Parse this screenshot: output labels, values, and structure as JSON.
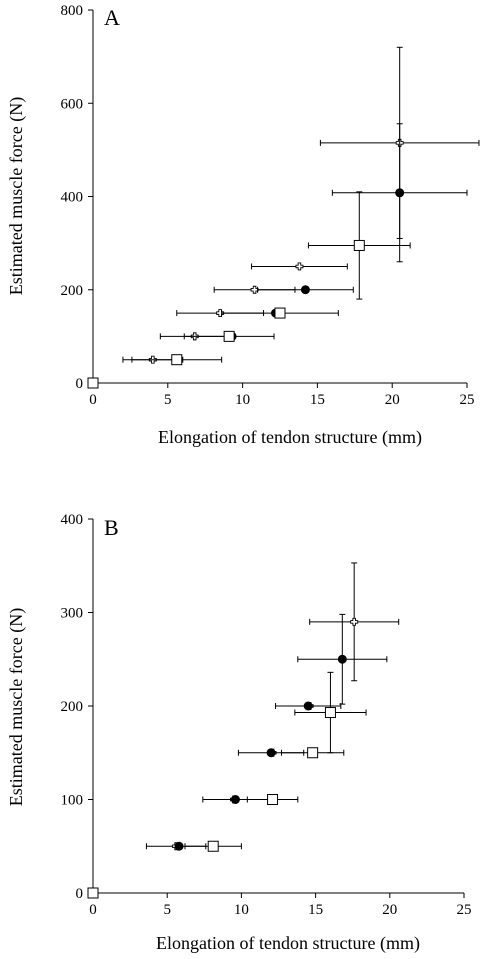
{
  "chart_data": [
    {
      "type": "scatter",
      "panel_label": "A",
      "xlabel": "Elongation of tendon structure (mm)",
      "ylabel": "Estimated muscle force (N)",
      "xlim": [
        0,
        25
      ],
      "ylim": [
        0,
        800
      ],
      "xticks": [
        0,
        5,
        10,
        15,
        20,
        25
      ],
      "yticks": [
        0,
        200,
        400,
        600,
        800
      ],
      "grid": false,
      "legend": "none",
      "series": [
        {
          "marker": "open-cross",
          "points": [
            {
              "x": 0,
              "y": 0,
              "xerr": 0,
              "yerr": 0
            },
            {
              "x": 4.0,
              "y": 50,
              "xerr": 2.0,
              "yerr": 0
            },
            {
              "x": 6.8,
              "y": 100,
              "xerr": 2.3,
              "yerr": 0
            },
            {
              "x": 8.5,
              "y": 150,
              "xerr": 2.9,
              "yerr": 0
            },
            {
              "x": 10.8,
              "y": 200,
              "xerr": 2.7,
              "yerr": 0
            },
            {
              "x": 13.8,
              "y": 250,
              "xerr": 3.2,
              "yerr": 0
            },
            {
              "x": 20.5,
              "y": 515,
              "xerr": 5.3,
              "yerr": 205
            }
          ]
        },
        {
          "marker": "filled-circle",
          "points": [
            {
              "x": 0,
              "y": 0,
              "xerr": 0,
              "yerr": 0
            },
            {
              "x": 5.7,
              "y": 50,
              "xerr": 0,
              "yerr": 0
            },
            {
              "x": 9.3,
              "y": 100,
              "xerr": 0,
              "yerr": 0
            },
            {
              "x": 12.2,
              "y": 150,
              "xerr": 0,
              "yerr": 0
            },
            {
              "x": 14.2,
              "y": 200,
              "xerr": 3.2,
              "yerr": 0
            },
            {
              "x": 20.5,
              "y": 408,
              "xerr": 4.5,
              "yerr": 148
            }
          ]
        },
        {
          "marker": "open-square",
          "points": [
            {
              "x": 0,
              "y": 0,
              "xerr": 0,
              "yerr": 0
            },
            {
              "x": 5.6,
              "y": 50,
              "xerr": 3.0,
              "yerr": 0
            },
            {
              "x": 9.1,
              "y": 100,
              "xerr": 3.0,
              "yerr": 0
            },
            {
              "x": 12.5,
              "y": 150,
              "xerr": 3.9,
              "yerr": 0
            },
            {
              "x": 17.8,
              "y": 295,
              "xerr": 3.4,
              "yerr": 115
            }
          ]
        }
      ]
    },
    {
      "type": "scatter",
      "panel_label": "B",
      "xlabel": "Elongation of tendon structure (mm)",
      "ylabel": "Estimated muscle force (N)",
      "xlim": [
        0,
        25
      ],
      "ylim": [
        0,
        400
      ],
      "xticks": [
        0,
        5,
        10,
        15,
        20,
        25
      ],
      "yticks": [
        0,
        100,
        200,
        300,
        400
      ],
      "grid": false,
      "legend": "none",
      "series": [
        {
          "marker": "open-cross",
          "points": [
            {
              "x": 0,
              "y": 0,
              "xerr": 0,
              "yerr": 0
            },
            {
              "x": 5.6,
              "y": 50,
              "xerr": 2.0,
              "yerr": 0
            },
            {
              "x": 9.5,
              "y": 100,
              "xerr": 0,
              "yerr": 0
            },
            {
              "x": 12.1,
              "y": 150,
              "xerr": 0,
              "yerr": 0
            },
            {
              "x": 14.6,
              "y": 200,
              "xerr": 0,
              "yerr": 0
            },
            {
              "x": 17.6,
              "y": 290,
              "xerr": 3.0,
              "yerr": 63
            }
          ]
        },
        {
          "marker": "filled-circle",
          "points": [
            {
              "x": 0,
              "y": 0,
              "xerr": 0,
              "yerr": 0
            },
            {
              "x": 5.8,
              "y": 50,
              "xerr": 0,
              "yerr": 0
            },
            {
              "x": 9.6,
              "y": 100,
              "xerr": 2.2,
              "yerr": 0
            },
            {
              "x": 12.0,
              "y": 150,
              "xerr": 2.2,
              "yerr": 0
            },
            {
              "x": 14.5,
              "y": 200,
              "xerr": 2.2,
              "yerr": 0
            },
            {
              "x": 16.8,
              "y": 250,
              "xerr": 3.0,
              "yerr": 48
            }
          ]
        },
        {
          "marker": "open-square",
          "points": [
            {
              "x": 0,
              "y": 0,
              "xerr": 0,
              "yerr": 0
            },
            {
              "x": 8.1,
              "y": 50,
              "xerr": 1.9,
              "yerr": 0
            },
            {
              "x": 12.1,
              "y": 100,
              "xerr": 1.7,
              "yerr": 0
            },
            {
              "x": 14.8,
              "y": 150,
              "xerr": 2.1,
              "yerr": 0
            },
            {
              "x": 16.0,
              "y": 193,
              "xerr": 2.4,
              "yerr": 43
            }
          ]
        }
      ]
    }
  ]
}
